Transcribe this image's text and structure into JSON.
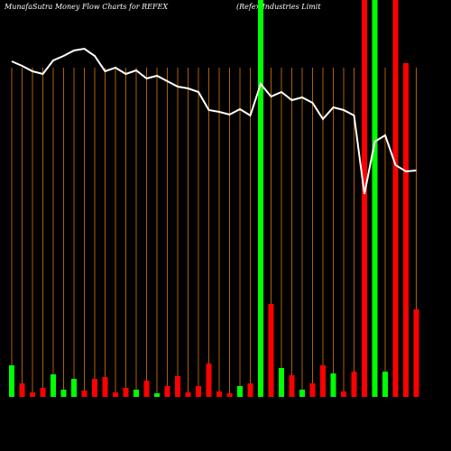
{
  "chart_data": {
    "type": "bar",
    "title": "MunafaSutra  Money Flow  Charts for REFEX",
    "subtitle": "(Refex Industries Limit",
    "categories": [
      null,
      null,
      null,
      null,
      null,
      null,
      null,
      null,
      null,
      null,
      null,
      null,
      null,
      null,
      null,
      null,
      null,
      null,
      null,
      null,
      null,
      null,
      null,
      null,
      null,
      null,
      null,
      null,
      null,
      null,
      null,
      null,
      null,
      null,
      null,
      null,
      null,
      null,
      null,
      null
    ],
    "values": [
      35,
      15,
      5,
      10,
      25,
      8,
      20,
      7,
      20,
      22,
      5,
      10,
      8,
      18,
      4,
      12,
      23,
      5,
      12,
      37,
      6,
      4,
      12,
      15,
      440,
      103,
      32,
      24,
      8,
      15,
      35,
      26,
      6,
      28,
      440,
      440,
      28,
      440,
      370,
      97
    ],
    "colors": [
      "#00ff00",
      "#ff0000",
      "#ff0000",
      "#ff0000",
      "#00ff00",
      "#00ff00",
      "#00ff00",
      "#ff0000",
      "#ff0000",
      "#ff0000",
      "#ff0000",
      "#ff0000",
      "#00ff00",
      "#ff0000",
      "#00ff00",
      "#ff0000",
      "#ff0000",
      "#ff0000",
      "#ff0000",
      "#ff0000",
      "#ff0000",
      "#ff0000",
      "#00ff00",
      "#ff0000",
      "#00ff00",
      "#ff0000",
      "#00ff00",
      "#ff0000",
      "#00ff00",
      "#ff0000",
      "#ff0000",
      "#00ff00",
      "#ff0000",
      "#ff0000",
      "#ff0000",
      "#00ff00",
      "#00ff00",
      "#ff0000",
      "#ff0000",
      "#ff0000"
    ],
    "line": {
      "color": "#ffffff",
      "values": [
        372,
        367,
        361,
        358,
        373,
        378,
        384,
        386,
        378,
        361,
        365,
        358,
        362,
        353,
        356,
        350,
        344,
        342,
        338,
        318,
        316,
        313,
        319,
        312,
        347,
        333,
        338,
        329,
        332,
        326,
        308,
        321,
        318,
        312,
        225,
        283,
        290,
        257,
        250,
        251
      ]
    },
    "grid_color": "#b06000",
    "ylim": [
      0,
      440
    ]
  }
}
